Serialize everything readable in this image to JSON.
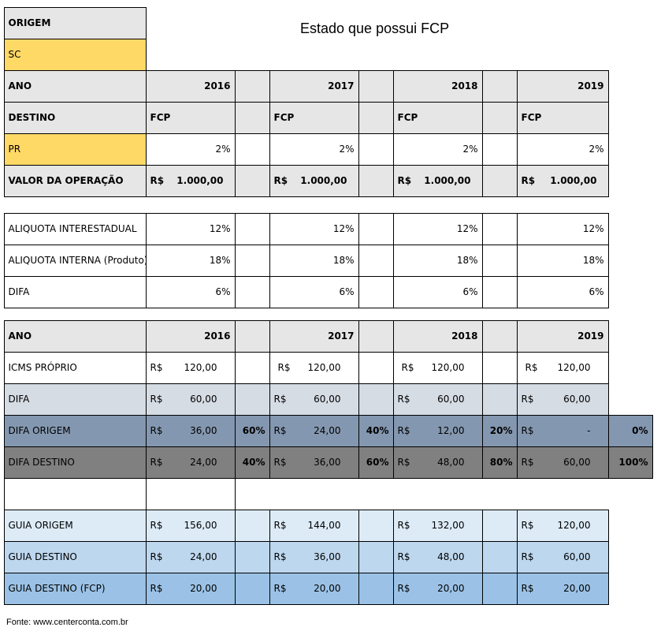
{
  "title": "Estado que possui FCP",
  "source": "Fonte: www.centerconta.com.br",
  "colors": {
    "header": "#e7e6e6",
    "yellow": "#ffd966",
    "difa": "#d6dce4",
    "difa_origem": "#8497b0",
    "difa_destino": "#808080",
    "guia_origem": "#ddebf7",
    "guia_destino": "#bdd7ee",
    "guia_fcp": "#9bc2e6"
  },
  "years": [
    "2016",
    "2017",
    "2018",
    "2019"
  ],
  "top": {
    "origem_label": "ORIGEM",
    "origem_value": "SC",
    "ano_label": "ANO",
    "destino_label": "DESTINO",
    "destino_values": [
      "FCP",
      "FCP",
      "FCP",
      "FCP"
    ],
    "destino_state": "PR",
    "fcp_rates": [
      "2%",
      "2%",
      "2%",
      "2%"
    ],
    "valor_label": "VALOR DA OPERAÇÃO",
    "valor_values": [
      "1.000,00",
      "1.000,00",
      "1.000,00",
      "1.000,00"
    ]
  },
  "currency": "R$",
  "aliquotas": [
    {
      "label": "ALIQUOTA INTERESTADUAL",
      "values": [
        "12%",
        "12%",
        "12%",
        "12%"
      ]
    },
    {
      "label": "ALIQUOTA INTERNA (Produto)",
      "values": [
        "18%",
        "18%",
        "18%",
        "18%"
      ]
    },
    {
      "label": "DIFA",
      "values": [
        "6%",
        "6%",
        "6%",
        "6%"
      ]
    }
  ],
  "calc": {
    "ano_label": "ANO",
    "rows": [
      {
        "label": "ICMS PRÓPRIO",
        "values": [
          "120,00",
          "120,00",
          "120,00",
          "120,00"
        ]
      },
      {
        "label": "DIFA",
        "values": [
          "60,00",
          "60,00",
          "60,00",
          "60,00"
        ]
      },
      {
        "label": "DIFA ORIGEM",
        "values": [
          "36,00",
          "24,00",
          "12,00",
          "-"
        ],
        "pcts": [
          "60%",
          "40%",
          "20%",
          "0%"
        ]
      },
      {
        "label": "DIFA DESTINO",
        "values": [
          "24,00",
          "36,00",
          "48,00",
          "60,00"
        ],
        "pcts": [
          "40%",
          "60%",
          "80%",
          "100%"
        ]
      }
    ],
    "guias": [
      {
        "label": "GUIA ORIGEM",
        "values": [
          "156,00",
          "144,00",
          "132,00",
          "120,00"
        ]
      },
      {
        "label": "GUIA DESTINO",
        "values": [
          "24,00",
          "36,00",
          "48,00",
          "60,00"
        ]
      },
      {
        "label": "GUIA DESTINO (FCP)",
        "values": [
          "20,00",
          "20,00",
          "20,00",
          "20,00"
        ]
      }
    ]
  }
}
